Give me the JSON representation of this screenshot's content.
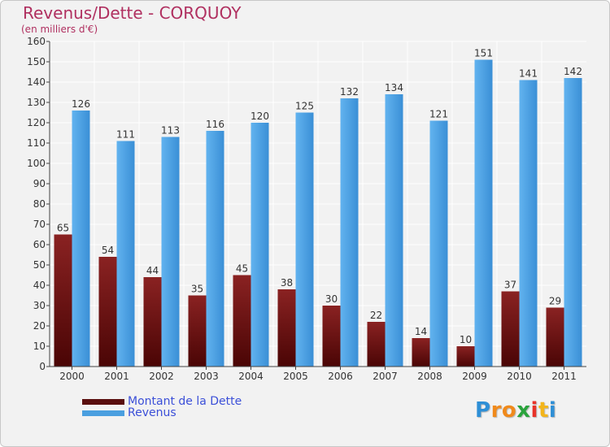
{
  "chart_data": {
    "type": "bar",
    "title": "Revenus/Dette - CORQUOY",
    "subtitle": "(en milliers d'€)",
    "categories": [
      "2000",
      "2001",
      "2002",
      "2003",
      "2004",
      "2005",
      "2006",
      "2007",
      "2008",
      "2009",
      "2010",
      "2011"
    ],
    "series": [
      {
        "name": "Montant de la Dette",
        "color": "#7a1515",
        "values": [
          65,
          54,
          44,
          35,
          45,
          38,
          30,
          22,
          14,
          10,
          37,
          29
        ]
      },
      {
        "name": "Revenus",
        "color": "#4a9fe0",
        "values": [
          126,
          111,
          113,
          116,
          120,
          125,
          132,
          134,
          121,
          151,
          141,
          142
        ]
      }
    ],
    "ylim": [
      0,
      160
    ],
    "yticks": [
      0,
      10,
      20,
      30,
      40,
      50,
      60,
      70,
      80,
      90,
      100,
      110,
      120,
      130,
      140,
      150,
      160
    ],
    "grid": true,
    "legend": "bottom-left"
  },
  "logo": {
    "letters": [
      "P",
      "r",
      "o",
      "x",
      "i",
      "t",
      "i"
    ],
    "colors": [
      "#2e8fd6",
      "#f08a1c",
      "#f08a1c",
      "#2aa33c",
      "#e8332a",
      "#f3b51b",
      "#2e8fd6"
    ]
  }
}
